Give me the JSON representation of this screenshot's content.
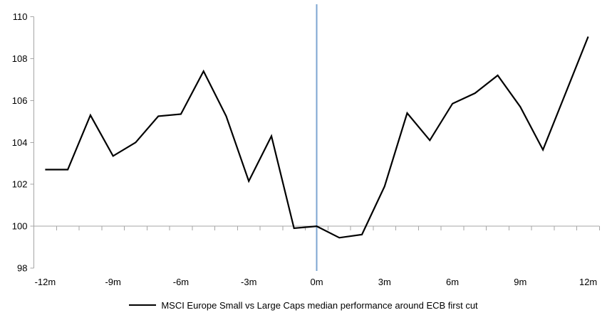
{
  "chart_data": {
    "type": "line",
    "title": "",
    "xlabel": "",
    "ylabel": "",
    "x": [
      -12,
      -11,
      -10,
      -9,
      -8,
      -7,
      -6,
      -5,
      -4,
      -3,
      -2,
      -1,
      0,
      1,
      2,
      3,
      4,
      5,
      6,
      7,
      8,
      9,
      10,
      11,
      12
    ],
    "x_tick_months": [
      -12,
      -9,
      -6,
      -3,
      0,
      3,
      6,
      9,
      12
    ],
    "x_tick_labels": [
      "-12m",
      "-9m",
      "-6m",
      "-3m",
      "0m",
      "3m",
      "6m",
      "9m",
      "12m"
    ],
    "y_ticks": [
      98,
      100,
      102,
      104,
      106,
      108,
      110
    ],
    "y_tick_labels": [
      "98",
      "100",
      "102",
      "104",
      "106",
      "108",
      "110"
    ],
    "ylim": [
      98,
      110
    ],
    "axis_crosses_at": 100,
    "grid": "baseline-only",
    "legend_position": "bottom-center",
    "event_line_month": 0,
    "series": [
      {
        "name": "MSCI Europe Small vs Large Caps median performance around ECB first cut",
        "color": "#000000",
        "values": [
          102.7,
          102.7,
          105.3,
          103.35,
          104.0,
          105.25,
          105.35,
          107.4,
          105.25,
          102.15,
          104.3,
          99.9,
          100.0,
          99.45,
          99.6,
          101.9,
          105.4,
          104.1,
          105.85,
          106.35,
          107.2,
          105.7,
          103.65,
          106.35,
          109.05
        ]
      }
    ]
  },
  "colors": {
    "series_line": "#000000",
    "event_line": "#7CA5D1",
    "axis": "#A6A6A6",
    "label_text": "#000000",
    "background": "#FFFFFF"
  }
}
